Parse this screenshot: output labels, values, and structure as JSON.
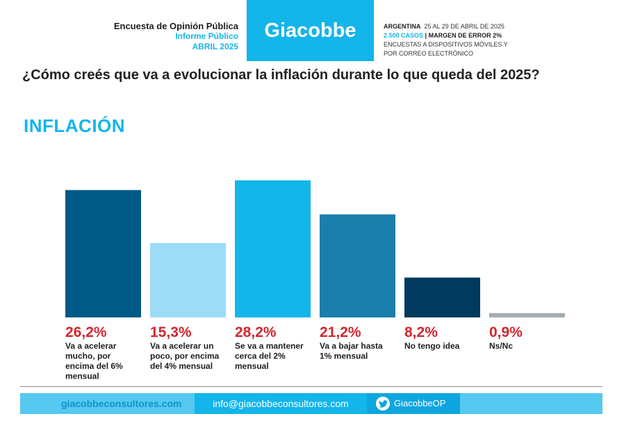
{
  "header": {
    "survey_title": "Encuesta de Opinión Pública",
    "report_type": "Informe Público",
    "report_date": "ABRIL 2025",
    "brand": "Giacobbe",
    "country": "ARGENTINA",
    "dates": "25 AL 29 DE ABRIL DE 2025",
    "cases": "2.500 CASOS",
    "separator": "|",
    "margin": "MARGEN DE ERROR 2%",
    "method_line1": "ENCUESTAS A DISPOSITIVOS MÓVILES Y",
    "method_line2": "POR CORREO ELECTRÓNICO"
  },
  "question": "¿Cómo creés que va a evolucionar la inflación durante lo que queda del 2025?",
  "section_title": "INFLACIÓN",
  "chart_data": {
    "type": "bar",
    "ylim": [
      0,
      30
    ],
    "grid": false,
    "values": [
      26.2,
      15.3,
      28.2,
      21.2,
      8.2,
      0.9
    ],
    "value_labels": [
      "26,2%",
      "15,3%",
      "28,2%",
      "21,2%",
      "8,2%",
      "0,9%"
    ],
    "categories": [
      [
        "Va a acelerar",
        "mucho, por",
        "encima del 6%",
        "mensual"
      ],
      [
        "Va a acelerar un",
        "poco, por encima",
        "del 4% mensual"
      ],
      [
        "Se va a mantener",
        "cerca del 2%",
        "mensual"
      ],
      [
        "Va a bajar hasta",
        "1% mensual"
      ],
      [
        "No tengo idea"
      ],
      [
        "Ns/Nc"
      ]
    ],
    "colors": [
      "#005a87",
      "#9cdcf7",
      "#13b5ea",
      "#1a7fab",
      "#003a5d",
      "#a5adb4"
    ],
    "value_label_color": "#d3262e"
  },
  "footer": {
    "website": "giacobbeconsultores.com",
    "email": "info@giacobbeconsultores.com",
    "twitter": "GiacobbeOP"
  }
}
